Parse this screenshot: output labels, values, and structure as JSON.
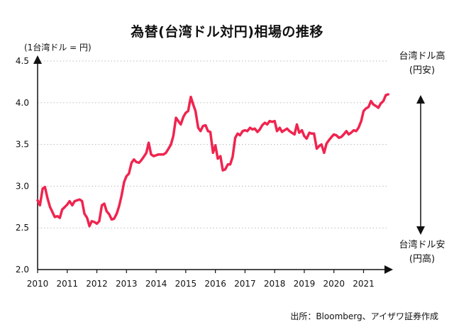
{
  "chart_data": {
    "type": "line",
    "title": "為替(台湾ドル対円)相場の推移",
    "unit_label": "(1台湾ドル = 円)",
    "xlim": [
      2010,
      2021.85
    ],
    "ylim": [
      2.0,
      4.5
    ],
    "yticks": [
      2.0,
      2.5,
      3.0,
      3.5,
      4.0,
      4.5
    ],
    "ytick_labels": [
      "2.0",
      "2.5",
      "3.0",
      "3.5",
      "4.0",
      "4.5"
    ],
    "xticks": [
      2010,
      2011,
      2012,
      2013,
      2014,
      2015,
      2016,
      2017,
      2018,
      2019,
      2020,
      2021
    ],
    "xtick_labels": [
      "2010",
      "2011",
      "2012",
      "2013",
      "2014",
      "2015",
      "2016",
      "2017",
      "2018",
      "2019",
      "2020",
      "2021"
    ],
    "grid": "horizontal dotted",
    "line_color": "#f0244f",
    "series": [
      {
        "x": [
          2010.0,
          2010.08,
          2010.17,
          2010.25,
          2010.33,
          2010.42,
          2010.5,
          2010.58,
          2010.67,
          2010.75,
          2010.83,
          2010.92,
          2011.0,
          2011.08,
          2011.17,
          2011.25,
          2011.33,
          2011.42,
          2011.5,
          2011.58,
          2011.67,
          2011.75,
          2011.83,
          2011.92,
          2012.0,
          2012.08,
          2012.17,
          2012.25,
          2012.33,
          2012.42,
          2012.5,
          2012.58,
          2012.67,
          2012.75,
          2012.83,
          2012.92,
          2013.0,
          2013.08,
          2013.17,
          2013.25,
          2013.33,
          2013.42,
          2013.5,
          2013.58,
          2013.67,
          2013.75,
          2013.83,
          2013.92,
          2014.0,
          2014.08,
          2014.17,
          2014.25,
          2014.33,
          2014.42,
          2014.5,
          2014.58,
          2014.67,
          2014.75,
          2014.83,
          2014.92,
          2015.0,
          2015.08,
          2015.17,
          2015.25,
          2015.33,
          2015.42,
          2015.5,
          2015.58,
          2015.67,
          2015.75,
          2015.83,
          2015.92,
          2016.0,
          2016.08,
          2016.17,
          2016.25,
          2016.33,
          2016.42,
          2016.5,
          2016.58,
          2016.67,
          2016.75,
          2016.83,
          2016.92,
          2017.0,
          2017.08,
          2017.17,
          2017.25,
          2017.33,
          2017.42,
          2017.5,
          2017.58,
          2017.67,
          2017.75,
          2017.83,
          2017.92,
          2018.0,
          2018.08,
          2018.17,
          2018.25,
          2018.33,
          2018.42,
          2018.5,
          2018.58,
          2018.67,
          2018.75,
          2018.83,
          2018.92,
          2019.0,
          2019.08,
          2019.17,
          2019.25,
          2019.33,
          2019.42,
          2019.5,
          2019.58,
          2019.67,
          2019.75,
          2019.83,
          2019.92,
          2020.0,
          2020.08,
          2020.17,
          2020.25,
          2020.33,
          2020.42,
          2020.5,
          2020.58,
          2020.67,
          2020.75,
          2020.83,
          2020.92,
          2021.0,
          2021.08,
          2021.17,
          2021.25,
          2021.33,
          2021.42,
          2021.5,
          2021.58,
          2021.67,
          2021.75,
          2021.83
        ],
        "values": [
          2.83,
          2.77,
          2.97,
          2.99,
          2.86,
          2.75,
          2.69,
          2.63,
          2.64,
          2.62,
          2.72,
          2.75,
          2.78,
          2.82,
          2.77,
          2.82,
          2.83,
          2.84,
          2.82,
          2.67,
          2.62,
          2.52,
          2.58,
          2.57,
          2.55,
          2.58,
          2.77,
          2.79,
          2.7,
          2.66,
          2.6,
          2.61,
          2.67,
          2.76,
          2.88,
          3.05,
          3.12,
          3.15,
          3.28,
          3.32,
          3.29,
          3.28,
          3.31,
          3.35,
          3.4,
          3.52,
          3.38,
          3.36,
          3.37,
          3.38,
          3.38,
          3.38,
          3.4,
          3.45,
          3.5,
          3.6,
          3.82,
          3.78,
          3.74,
          3.83,
          3.88,
          3.9,
          4.07,
          3.98,
          3.9,
          3.7,
          3.66,
          3.72,
          3.73,
          3.66,
          3.65,
          3.4,
          3.49,
          3.33,
          3.36,
          3.19,
          3.2,
          3.26,
          3.26,
          3.35,
          3.58,
          3.63,
          3.61,
          3.66,
          3.67,
          3.66,
          3.7,
          3.68,
          3.69,
          3.65,
          3.68,
          3.73,
          3.76,
          3.74,
          3.78,
          3.77,
          3.78,
          3.66,
          3.7,
          3.65,
          3.67,
          3.69,
          3.66,
          3.64,
          3.62,
          3.74,
          3.64,
          3.67,
          3.6,
          3.57,
          3.64,
          3.63,
          3.63,
          3.45,
          3.48,
          3.5,
          3.4,
          3.51,
          3.55,
          3.59,
          3.62,
          3.61,
          3.58,
          3.59,
          3.62,
          3.66,
          3.62,
          3.64,
          3.67,
          3.66,
          3.7,
          3.78,
          3.9,
          3.93,
          3.95,
          4.02,
          3.98,
          3.96,
          3.94,
          3.99,
          4.02,
          4.09,
          4.1
        ]
      }
    ]
  },
  "side_labels": {
    "top_line1": "台湾ドル高",
    "top_line2": "(円安)",
    "bottom_line1": "台湾ドル安",
    "bottom_line2": "(円高)"
  },
  "source": "出所：Bloomberg、アイザワ証券作成"
}
